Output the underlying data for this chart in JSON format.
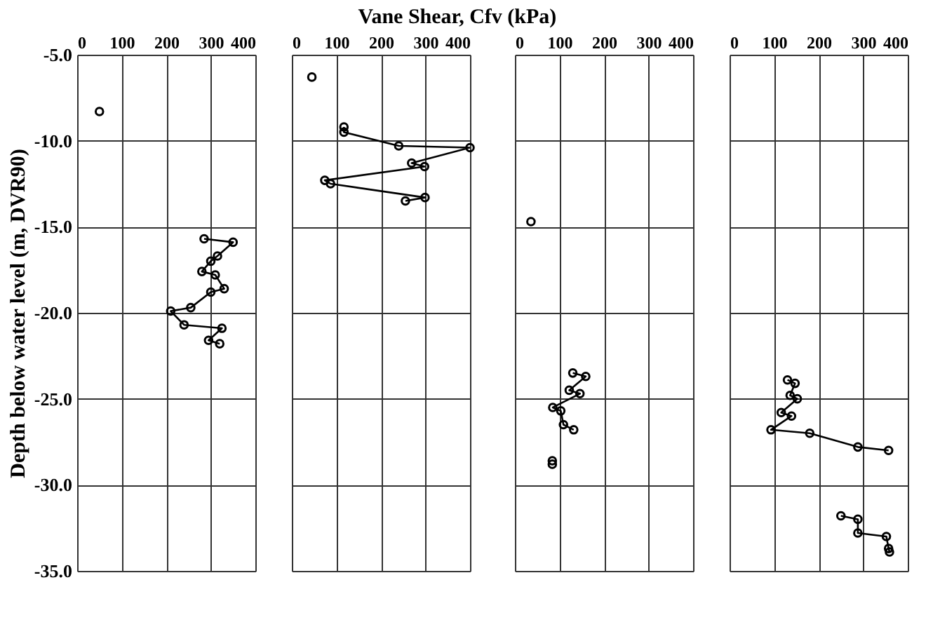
{
  "chart_data": [
    {
      "type": "line",
      "xlabel": "Vane Shear, Cfv (kPa)",
      "ylabel": "Depth below water level (m, DVR90)",
      "xlim": [
        0,
        400
      ],
      "xticks": [
        0,
        100,
        200,
        300,
        400
      ],
      "ylim": [
        -35,
        -5
      ],
      "yticks": [
        {
          "value": -5,
          "label": "-5.0"
        },
        {
          "value": -10,
          "label": "-10.0"
        },
        {
          "value": -15,
          "label": "-15.0"
        },
        {
          "value": -20,
          "label": "-20.0"
        },
        {
          "value": -25,
          "label": "-25.0"
        },
        {
          "value": -30,
          "label": "-30.0"
        },
        {
          "value": -35,
          "label": "-35.0"
        }
      ],
      "grid": true,
      "marker": "circle",
      "series": [
        {
          "type": "scatter",
          "color": "#000000",
          "x": [
            50
          ],
          "values": [
            -8.3
          ]
        },
        {
          "color": "#000000",
          "x": [
            285,
            350,
            315,
            300,
            280,
            310,
            330,
            300,
            255,
            210,
            240,
            325,
            295,
            320
          ],
          "values": [
            -15.7,
            -15.9,
            -16.7,
            -17.0,
            -17.6,
            -17.8,
            -18.6,
            -18.8,
            -19.7,
            -19.9,
            -20.7,
            -20.9,
            -21.6,
            -21.8
          ]
        }
      ]
    },
    {
      "type": "line",
      "xlim": [
        0,
        400
      ],
      "xticks": [
        0,
        100,
        200,
        300,
        400
      ],
      "ylim": [
        -35,
        -5
      ],
      "yticks": [
        -5,
        -10,
        -15,
        -20,
        -25,
        -30,
        -35
      ],
      "tick_labels": "x",
      "grid": true,
      "marker": "circle",
      "series": [
        {
          "type": "scatter",
          "color": "#000000",
          "x": [
            45
          ],
          "values": [
            -6.3
          ]
        },
        {
          "color": "#000000",
          "x": [
            117,
            117,
            240,
            400,
            269,
            298,
            74,
            87,
            299,
            255
          ],
          "values": [
            -9.2,
            -9.5,
            -10.3,
            -10.4,
            -11.3,
            -11.5,
            -12.3,
            -12.5,
            -13.3,
            -13.5
          ]
        }
      ]
    },
    {
      "type": "line",
      "xlim": [
        0,
        400
      ],
      "xticks": [
        0,
        100,
        200,
        300,
        400
      ],
      "ylim": [
        -35,
        -5
      ],
      "yticks": [
        -5,
        -10,
        -15,
        -20,
        -25,
        -30,
        -35
      ],
      "tick_labels": "x",
      "grid": true,
      "marker": "circle",
      "series": [
        {
          "type": "scatter",
          "color": "#000000",
          "x": [
            36,
            84,
            84
          ],
          "values": [
            -14.7,
            -28.6,
            -28.8
          ]
        },
        {
          "color": "#000000",
          "x": [
            130,
            159,
            122,
            146,
            85,
            103,
            109,
            132
          ],
          "values": [
            -23.5,
            -23.7,
            -24.5,
            -24.7,
            -25.5,
            -25.7,
            -26.5,
            -26.8
          ]
        }
      ]
    },
    {
      "type": "line",
      "xlim": [
        0,
        400
      ],
      "xticks": [
        0,
        100,
        200,
        300,
        400
      ],
      "ylim": [
        -35,
        -5
      ],
      "yticks": [
        -5,
        -10,
        -15,
        -20,
        -25,
        -30,
        -35
      ],
      "tick_labels": "x",
      "grid": true,
      "marker": "circle",
      "series": [
        {
          "color": "#000000",
          "x": [
            130,
            147,
            136,
            152,
            116,
            139,
            93,
            180,
            288,
            357
          ],
          "values": [
            -23.9,
            -24.1,
            -24.8,
            -25.0,
            -25.8,
            -26.0,
            -26.8,
            -27.0,
            -27.8,
            -28.0
          ]
        },
        {
          "color": "#000000",
          "x": [
            250,
            288,
            288,
            352,
            357,
            359
          ],
          "values": [
            -31.8,
            -32.0,
            -32.8,
            -33.0,
            -33.7,
            -33.9
          ]
        }
      ]
    }
  ]
}
